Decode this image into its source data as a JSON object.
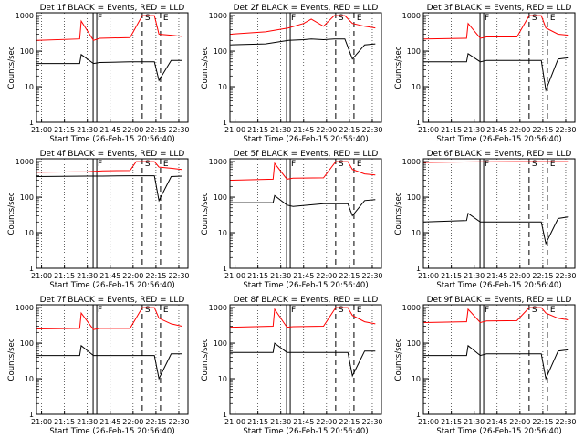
{
  "chart_data": [
    {
      "type": "line",
      "title": "Det 1f BLACK = Events, RED = LLD",
      "xlabel": "Start Time (26-Feb-15 20:56:40)",
      "ylabel": "Counts/sec",
      "yscale": "log",
      "ylim": [
        1,
        1200
      ],
      "x_ticks": [
        "21:00",
        "21:15",
        "21:30",
        "21:45",
        "22:00",
        "22:15",
        "22:30"
      ],
      "y_ticks": [
        "1",
        "10",
        "100",
        "1000"
      ],
      "markers": [
        {
          "t": "21:35",
          "label": "F"
        },
        {
          "t": "22:06",
          "label": "S"
        },
        {
          "t": "22:18",
          "label": "E"
        }
      ],
      "series": [
        {
          "color": "#ff0000",
          "x": [
            "20:57",
            "21:25",
            "21:26",
            "21:34",
            "21:38",
            "21:58",
            "22:06",
            "22:14",
            "22:17",
            "22:25",
            "22:32"
          ],
          "y": [
            200,
            220,
            700,
            200,
            230,
            240,
            1000,
            1000,
            300,
            280,
            260
          ]
        },
        {
          "color": "#000000",
          "x": [
            "20:57",
            "21:25",
            "21:26",
            "21:34",
            "21:38",
            "21:58",
            "22:06",
            "22:14",
            "22:17",
            "22:25",
            "22:32"
          ],
          "y": [
            45,
            45,
            80,
            45,
            48,
            50,
            50,
            50,
            15,
            55,
            55
          ]
        }
      ]
    },
    {
      "type": "line",
      "title": "Det 2f BLACK = Events, RED = LLD",
      "xlabel": "Start Time (26-Feb-15 20:56:40)",
      "ylabel": "Counts/sec",
      "yscale": "log",
      "ylim": [
        1,
        1200
      ],
      "x_ticks": [
        "21:00",
        "21:15",
        "21:30",
        "21:45",
        "22:00",
        "22:15",
        "22:30"
      ],
      "y_ticks": [
        "1",
        "10",
        "100",
        "1000"
      ],
      "markers": [
        {
          "t": "21:35",
          "label": "F"
        },
        {
          "t": "22:06",
          "label": "S"
        },
        {
          "t": "22:18",
          "label": "E"
        }
      ],
      "series": [
        {
          "color": "#ff0000",
          "x": [
            "20:57",
            "21:20",
            "21:35",
            "21:45",
            "21:50",
            "21:58",
            "22:05",
            "22:12",
            "22:17",
            "22:25",
            "22:32"
          ],
          "y": [
            300,
            350,
            450,
            600,
            800,
            500,
            1000,
            1000,
            600,
            500,
            450
          ]
        },
        {
          "color": "#000000",
          "x": [
            "20:57",
            "21:20",
            "21:35",
            "21:45",
            "21:50",
            "21:58",
            "22:05",
            "22:12",
            "22:17",
            "22:25",
            "22:32"
          ],
          "y": [
            150,
            160,
            200,
            210,
            220,
            210,
            220,
            220,
            60,
            150,
            160
          ]
        }
      ]
    },
    {
      "type": "line",
      "title": "Det 3f BLACK = Events, RED = LLD",
      "xlabel": "Start Time (26-Feb-15 20:56:40)",
      "ylabel": "Counts/sec",
      "yscale": "log",
      "ylim": [
        1,
        1200
      ],
      "x_ticks": [
        "21:00",
        "21:15",
        "21:30",
        "21:45",
        "22:00",
        "22:15",
        "22:30"
      ],
      "y_ticks": [
        "1",
        "10",
        "100",
        "1000"
      ],
      "markers": [
        {
          "t": "21:35",
          "label": "F"
        },
        {
          "t": "22:06",
          "label": "S"
        },
        {
          "t": "22:18",
          "label": "E"
        }
      ],
      "series": [
        {
          "color": "#ff0000",
          "x": [
            "20:57",
            "21:25",
            "21:26",
            "21:34",
            "21:38",
            "21:58",
            "22:06",
            "22:14",
            "22:17",
            "22:25",
            "22:32"
          ],
          "y": [
            220,
            230,
            600,
            230,
            250,
            250,
            1000,
            1000,
            450,
            300,
            280
          ]
        },
        {
          "color": "#000000",
          "x": [
            "20:57",
            "21:25",
            "21:26",
            "21:34",
            "21:38",
            "21:58",
            "22:06",
            "22:14",
            "22:17",
            "22:25",
            "22:32"
          ],
          "y": [
            50,
            50,
            85,
            50,
            55,
            55,
            55,
            55,
            8,
            60,
            65
          ]
        }
      ]
    },
    {
      "type": "line",
      "title": "Det 4f BLACK = Events, RED = LLD",
      "xlabel": "Start Time (26-Feb-15 20:56:40)",
      "ylabel": "Counts/sec",
      "yscale": "log",
      "ylim": [
        1,
        1200
      ],
      "x_ticks": [
        "21:00",
        "21:15",
        "21:30",
        "21:45",
        "22:00",
        "22:15",
        "22:30"
      ],
      "y_ticks": [
        "1",
        "10",
        "100",
        "1000"
      ],
      "markers": [
        {
          "t": "21:35",
          "label": "F"
        },
        {
          "t": "22:06",
          "label": "S"
        },
        {
          "t": "22:18",
          "label": "E"
        }
      ],
      "series": [
        {
          "color": "#ff0000",
          "x": [
            "20:57",
            "21:30",
            "21:40",
            "21:58",
            "22:02",
            "22:06",
            "22:14",
            "22:17",
            "22:25",
            "22:32"
          ],
          "y": [
            500,
            520,
            550,
            560,
            1000,
            1000,
            1000,
            700,
            650,
            600
          ]
        },
        {
          "color": "#000000",
          "x": [
            "20:57",
            "21:30",
            "21:40",
            "21:58",
            "22:02",
            "22:06",
            "22:14",
            "22:17",
            "22:25",
            "22:32"
          ],
          "y": [
            380,
            390,
            390,
            400,
            400,
            400,
            400,
            80,
            380,
            390
          ]
        }
      ]
    },
    {
      "type": "line",
      "title": "Det 5f BLACK = Events, RED = LLD",
      "xlabel": "Start Time (26-Feb-15 20:56:40)",
      "ylabel": "Counts/sec",
      "yscale": "log",
      "ylim": [
        1,
        1200
      ],
      "x_ticks": [
        "21:00",
        "21:15",
        "21:30",
        "21:45",
        "22:00",
        "22:15",
        "22:30"
      ],
      "y_ticks": [
        "1",
        "10",
        "100",
        "1000"
      ],
      "markers": [
        {
          "t": "21:35",
          "label": "F"
        },
        {
          "t": "22:06",
          "label": "S"
        },
        {
          "t": "22:18",
          "label": "E"
        }
      ],
      "series": [
        {
          "color": "#ff0000",
          "x": [
            "20:57",
            "21:25",
            "21:26",
            "21:34",
            "21:38",
            "21:58",
            "22:06",
            "22:14",
            "22:17",
            "22:25",
            "22:32"
          ],
          "y": [
            300,
            320,
            900,
            320,
            340,
            350,
            1000,
            1000,
            600,
            450,
            420
          ]
        },
        {
          "color": "#000000",
          "x": [
            "20:57",
            "21:25",
            "21:26",
            "21:34",
            "21:38",
            "21:58",
            "22:06",
            "22:14",
            "22:17",
            "22:25",
            "22:32"
          ],
          "y": [
            70,
            70,
            110,
            60,
            55,
            65,
            65,
            65,
            30,
            80,
            85
          ]
        }
      ]
    },
    {
      "type": "line",
      "title": "Det 6f BLACK = Events, RED = LLD",
      "xlabel": "Start Time (26-Feb-15 20:56:40)",
      "ylabel": "Counts/sec",
      "yscale": "log",
      "ylim": [
        1,
        1200
      ],
      "x_ticks": [
        "21:00",
        "21:15",
        "21:30",
        "21:45",
        "22:00",
        "22:15",
        "22:30"
      ],
      "y_ticks": [
        "1",
        "10",
        "100",
        "1000"
      ],
      "markers": [
        {
          "t": "21:35",
          "label": "F"
        },
        {
          "t": "22:06",
          "label": "S"
        },
        {
          "t": "22:18",
          "label": "E"
        }
      ],
      "series": [
        {
          "color": "#ff0000",
          "x": [
            "20:57",
            "21:30",
            "21:58",
            "22:06",
            "22:14",
            "22:17",
            "22:25",
            "22:32"
          ],
          "y": [
            950,
            980,
            1000,
            1000,
            1000,
            1000,
            1000,
            1000
          ]
        },
        {
          "color": "#000000",
          "x": [
            "20:57",
            "21:25",
            "21:26",
            "21:34",
            "21:38",
            "21:58",
            "22:06",
            "22:14",
            "22:17",
            "22:25",
            "22:32"
          ],
          "y": [
            20,
            22,
            35,
            20,
            20,
            20,
            20,
            20,
            5,
            25,
            28
          ]
        }
      ]
    },
    {
      "type": "line",
      "title": "Det 7f BLACK = Events, RED = LLD",
      "xlabel": "Start Time (26-Feb-15 20:56:40)",
      "ylabel": "Counts/sec",
      "yscale": "log",
      "ylim": [
        1,
        1200
      ],
      "x_ticks": [
        "21:00",
        "21:15",
        "21:30",
        "21:45",
        "22:00",
        "22:15",
        "22:30"
      ],
      "y_ticks": [
        "1",
        "10",
        "100",
        "1000"
      ],
      "markers": [
        {
          "t": "21:35",
          "label": "F"
        },
        {
          "t": "22:06",
          "label": "S"
        },
        {
          "t": "22:18",
          "label": "E"
        }
      ],
      "series": [
        {
          "color": "#ff0000",
          "x": [
            "20:57",
            "21:25",
            "21:26",
            "21:34",
            "21:38",
            "21:58",
            "22:06",
            "22:14",
            "22:17",
            "22:25",
            "22:32"
          ],
          "y": [
            250,
            260,
            700,
            240,
            260,
            260,
            1000,
            1000,
            500,
            350,
            300
          ]
        },
        {
          "color": "#000000",
          "x": [
            "20:57",
            "21:25",
            "21:26",
            "21:34",
            "21:38",
            "21:58",
            "22:06",
            "22:14",
            "22:17",
            "22:25",
            "22:32"
          ],
          "y": [
            45,
            45,
            85,
            45,
            45,
            45,
            45,
            45,
            10,
            50,
            50
          ]
        }
      ]
    },
    {
      "type": "line",
      "title": "Det 8f BLACK = Events, RED = LLD",
      "xlabel": "Start Time (26-Feb-15 20:56:40)",
      "ylabel": "Counts/sec",
      "yscale": "log",
      "ylim": [
        1,
        1200
      ],
      "x_ticks": [
        "21:00",
        "21:15",
        "21:30",
        "21:45",
        "22:00",
        "22:15",
        "22:30"
      ],
      "y_ticks": [
        "1",
        "10",
        "100",
        "1000"
      ],
      "markers": [
        {
          "t": "21:35",
          "label": "F"
        },
        {
          "t": "22:06",
          "label": "S"
        },
        {
          "t": "22:18",
          "label": "E"
        }
      ],
      "series": [
        {
          "color": "#ff0000",
          "x": [
            "20:57",
            "21:25",
            "21:26",
            "21:34",
            "21:38",
            "21:58",
            "22:06",
            "22:14",
            "22:17",
            "22:25",
            "22:32"
          ],
          "y": [
            280,
            300,
            900,
            280,
            290,
            300,
            1000,
            1000,
            600,
            400,
            350
          ]
        },
        {
          "color": "#000000",
          "x": [
            "20:57",
            "21:25",
            "21:26",
            "21:34",
            "21:38",
            "21:58",
            "22:06",
            "22:14",
            "22:17",
            "22:25",
            "22:32"
          ],
          "y": [
            55,
            55,
            100,
            55,
            55,
            55,
            55,
            55,
            12,
            60,
            60
          ]
        }
      ]
    },
    {
      "type": "line",
      "title": "Det 9f BLACK = Events, RED = LLD",
      "xlabel": "Start Time (26-Feb-15 20:56:40)",
      "ylabel": "Counts/sec",
      "yscale": "log",
      "ylim": [
        1,
        1200
      ],
      "x_ticks": [
        "21:00",
        "21:15",
        "21:30",
        "21:45",
        "22:00",
        "22:15",
        "22:30"
      ],
      "y_ticks": [
        "1",
        "10",
        "100",
        "1000"
      ],
      "markers": [
        {
          "t": "21:35",
          "label": "F"
        },
        {
          "t": "22:06",
          "label": "S"
        },
        {
          "t": "22:18",
          "label": "E"
        }
      ],
      "series": [
        {
          "color": "#ff0000",
          "x": [
            "20:57",
            "21:25",
            "21:26",
            "21:34",
            "21:38",
            "21:58",
            "22:06",
            "22:14",
            "22:17",
            "22:25",
            "22:32"
          ],
          "y": [
            380,
            400,
            900,
            380,
            420,
            430,
            1000,
            1000,
            700,
            500,
            450
          ]
        },
        {
          "color": "#000000",
          "x": [
            "20:57",
            "21:25",
            "21:26",
            "21:34",
            "21:38",
            "21:58",
            "22:06",
            "22:14",
            "22:17",
            "22:25",
            "22:32"
          ],
          "y": [
            45,
            45,
            85,
            45,
            50,
            50,
            50,
            50,
            10,
            60,
            65
          ]
        }
      ]
    }
  ]
}
